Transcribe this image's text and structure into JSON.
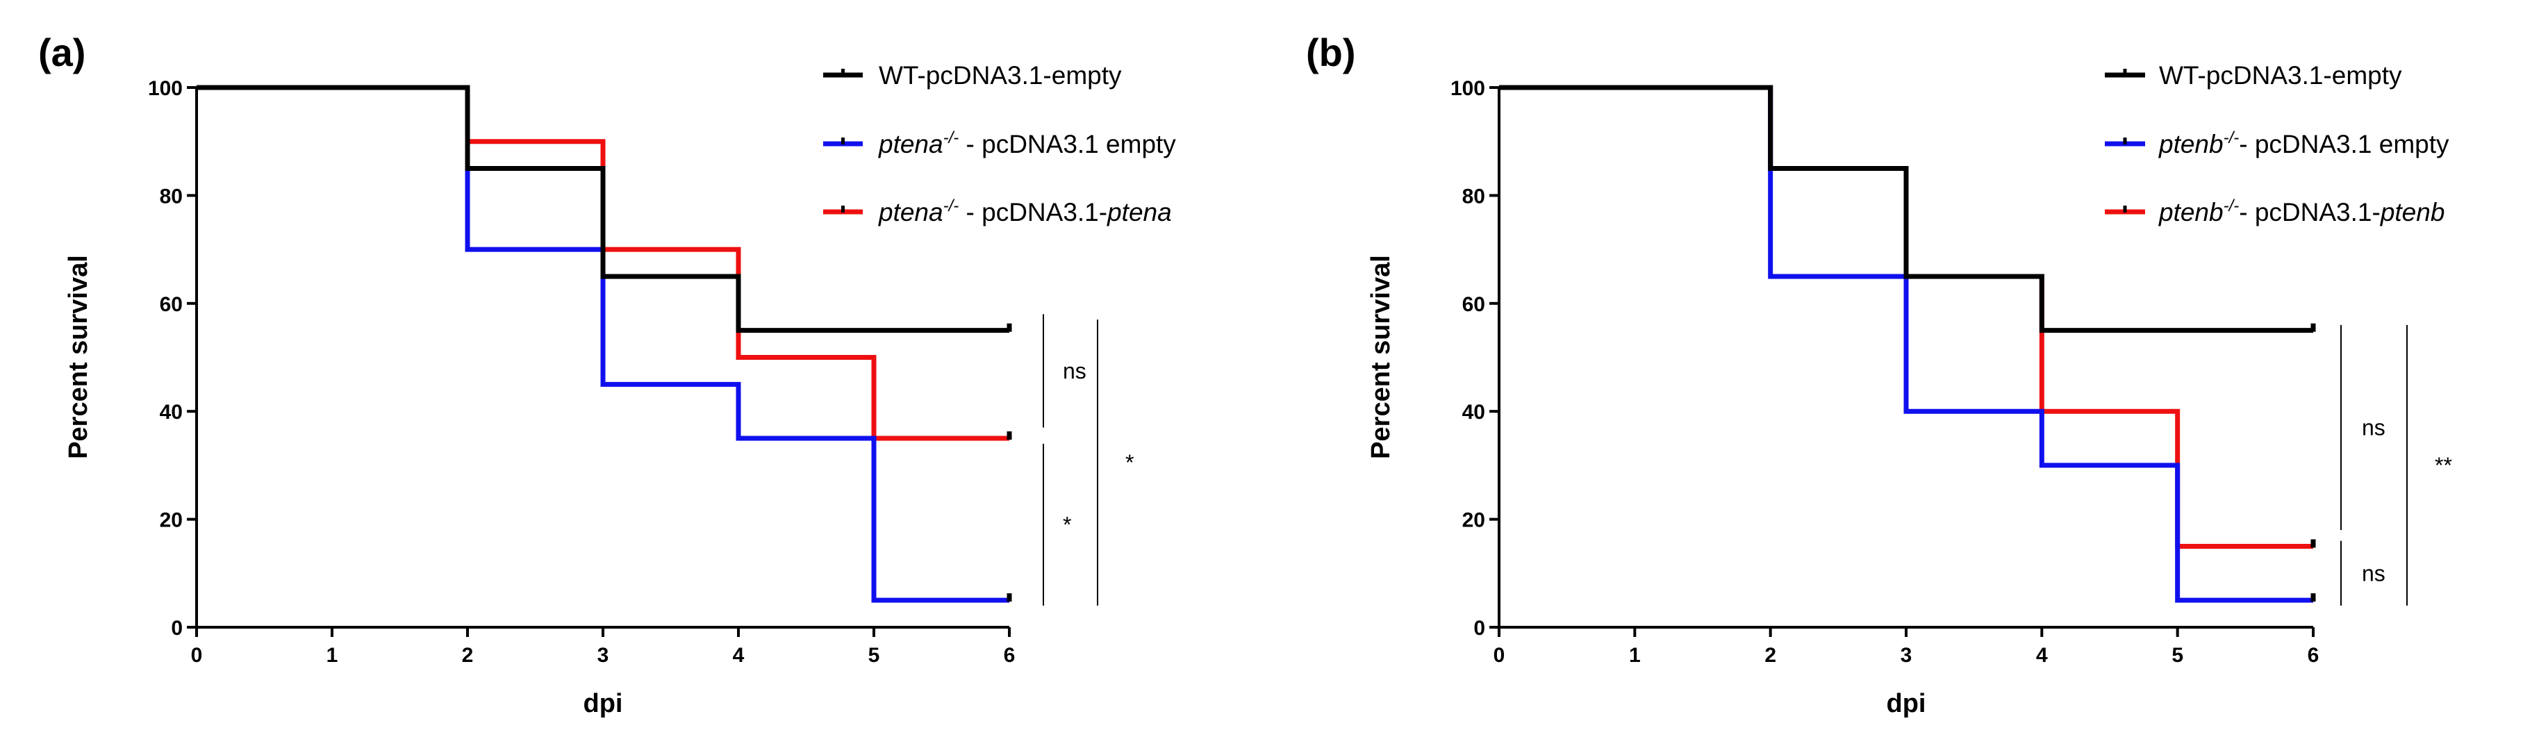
{
  "chart_data": [
    {
      "type": "line",
      "panel_label": "(a)",
      "title": "",
      "xlabel": "dpi",
      "ylabel": "Percent survival",
      "xlim": [
        0,
        6
      ],
      "ylim": [
        0,
        100
      ],
      "x_ticks": [
        0,
        1,
        2,
        3,
        4,
        5,
        6
      ],
      "y_ticks": [
        0,
        20,
        40,
        60,
        80,
        100
      ],
      "grid": false,
      "legend_position": "top-right",
      "series": [
        {
          "name": "WT-pcDNA3.1-empty",
          "legend_parts": [
            "WT-pcDNA3.1-empty"
          ],
          "color": "#000000",
          "x": [
            0,
            2,
            3,
            4,
            6
          ],
          "values": [
            100,
            85,
            65,
            55,
            55
          ]
        },
        {
          "name": "ptena-/- - pcDNA3.1 empty",
          "legend_parts": [
            "ptena",
            "-/-",
            " - pcDNA3.1 empty"
          ],
          "color": "#1010ee",
          "x": [
            0,
            2,
            3,
            4,
            5,
            6
          ],
          "values": [
            100,
            70,
            45,
            35,
            5,
            5
          ]
        },
        {
          "name": "ptena-/- - pcDNA3.1-ptena",
          "legend_parts": [
            "ptena",
            "-/-",
            " - pcDNA3.1-",
            "ptena"
          ],
          "color": "#ee1010",
          "x": [
            0,
            2,
            3,
            4,
            5,
            6
          ],
          "values": [
            100,
            90,
            70,
            50,
            35,
            35
          ]
        }
      ],
      "significance": [
        {
          "label": "ns",
          "y_range": [
            37,
            58
          ]
        },
        {
          "label": "*",
          "y_range": [
            4,
            34
          ]
        },
        {
          "label": "*",
          "y_range": [
            4,
            57
          ]
        }
      ]
    },
    {
      "type": "line",
      "panel_label": "(b)",
      "title": "",
      "xlabel": "dpi",
      "ylabel": "Percent survival",
      "xlim": [
        0,
        6
      ],
      "ylim": [
        0,
        100
      ],
      "x_ticks": [
        0,
        1,
        2,
        3,
        4,
        5,
        6
      ],
      "y_ticks": [
        0,
        20,
        40,
        60,
        80,
        100
      ],
      "grid": false,
      "legend_position": "top-right",
      "series": [
        {
          "name": "WT-pcDNA3.1-empty",
          "legend_parts": [
            "WT-pcDNA3.1-empty"
          ],
          "color": "#000000",
          "x": [
            0,
            2,
            3,
            4,
            6
          ],
          "values": [
            100,
            85,
            65,
            55,
            55
          ]
        },
        {
          "name": "ptenb-/- - pcDNA3.1 empty",
          "legend_parts": [
            "ptenb",
            "-/-",
            "- pcDNA3.1 empty"
          ],
          "color": "#1010ee",
          "x": [
            0,
            2,
            3,
            4,
            5,
            6
          ],
          "values": [
            100,
            65,
            40,
            30,
            5,
            5
          ]
        },
        {
          "name": "ptenb-/- - pcDNA3.1-ptenb",
          "legend_parts": [
            "ptenb",
            "-/-",
            "- pcDNA3.1-",
            "ptenb"
          ],
          "color": "#ee1010",
          "x": [
            0,
            2,
            3,
            4,
            5,
            6
          ],
          "values": [
            100,
            85,
            65,
            40,
            15,
            15
          ]
        }
      ],
      "significance": [
        {
          "label": "ns",
          "y_range": [
            18,
            56
          ]
        },
        {
          "label": "ns",
          "y_range": [
            4,
            16
          ]
        },
        {
          "label": "**",
          "y_range": [
            4,
            56
          ]
        }
      ]
    }
  ]
}
